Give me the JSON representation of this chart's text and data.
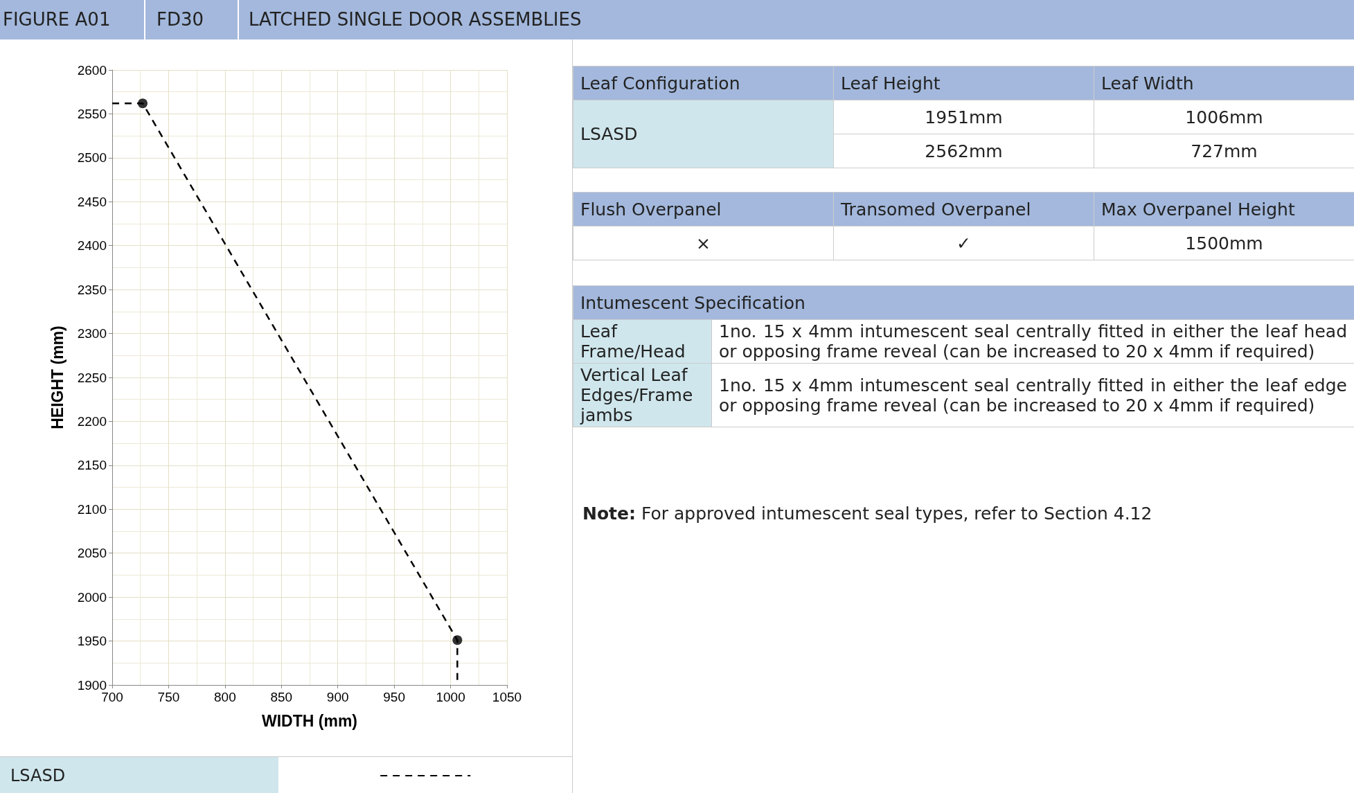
{
  "chart_data": [
    {
      "type": "line",
      "title": "LATCHED SINGLE DOOR ASSEMBLIES",
      "annotations": [
        "FIGURE A01",
        "FD30"
      ],
      "xlabel": "WIDTH (mm)",
      "ylabel": "HEIGHT (mm)",
      "xlim": [
        700,
        1050
      ],
      "xticks": [
        700,
        750,
        800,
        850,
        900,
        950,
        1000,
        1050
      ],
      "ylim": [
        1900,
        2600
      ],
      "yticks": [
        1900,
        1950,
        2000,
        2050,
        2100,
        2150,
        2200,
        2250,
        2300,
        2350,
        2400,
        2450,
        2500,
        2550,
        2600
      ],
      "grid": true,
      "legend": "bottom",
      "series": [
        {
          "name": "LSASD",
          "type": "line",
          "color": "#000000",
          "line_style": "dashed",
          "marker": "none",
          "x": [
            700,
            727,
            1006,
            1006
          ],
          "values": [
            2562,
            2562,
            1951,
            1900
          ]
        },
        {
          "type": "scatter",
          "color": "#000000",
          "marker": "circle",
          "x": [
            727,
            1006
          ],
          "values": [
            2562,
            1951
          ]
        }
      ]
    },
    {
      "type": "other",
      "annotations": [
        "Leaf Configuration",
        "Leaf Height",
        "Leaf Width",
        "LSASD",
        "1951mm",
        "1006mm",
        "2562mm",
        "727mm",
        "Flush Overpanel",
        "Transomed Overpanel",
        "Max Overpanel Height",
        "×",
        "✓",
        "1500mm",
        "Intumescent Specification",
        "Leaf Frame/Head",
        "1no. 15 x 4mm intumescent seal centrally fitted in either the leaf head or opposing frame reveal (can be increased to 20 x 4mm if required)",
        "Vertical Leaf Edges/Frame jambs",
        "1no. 15 x 4mm intumescent seal centrally fitted in either the leaf edge or opposing frame reveal (can be increased to 20 x 4mm if required)",
        "Note: For approved intumescent seal types, refer to Section 4.12"
      ]
    }
  ]
}
